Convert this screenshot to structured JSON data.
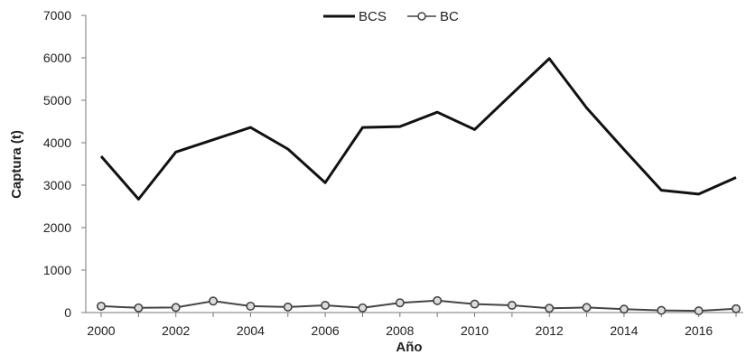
{
  "chart_data": {
    "type": "line",
    "title": "",
    "xlabel": "Año",
    "ylabel": "Captura (t)",
    "x": [
      2000,
      2001,
      2002,
      2003,
      2004,
      2005,
      2006,
      2007,
      2008,
      2009,
      2010,
      2011,
      2012,
      2013,
      2014,
      2015,
      2016,
      2017
    ],
    "x_tick_labels": [
      "2000",
      "2002",
      "2004",
      "2006",
      "2008",
      "2010",
      "2012",
      "2014",
      "2016"
    ],
    "y_tick_labels": [
      "0",
      "1000",
      "2000",
      "3000",
      "4000",
      "5000",
      "6000",
      "7000"
    ],
    "ylim": [
      0,
      7000
    ],
    "xlim": [
      2000,
      2017
    ],
    "grid": false,
    "legend_position": "top-center",
    "series": [
      {
        "name": "BCS",
        "color": "#111111",
        "marker": "none",
        "values": [
          3680,
          2670,
          3780,
          4070,
          4360,
          3850,
          3060,
          4360,
          4380,
          4720,
          4310,
          5150,
          5980,
          4820,
          3840,
          2880,
          2790,
          3180
        ]
      },
      {
        "name": "BC",
        "color": "#444444",
        "marker": "circle",
        "values": [
          150,
          110,
          120,
          270,
          150,
          130,
          170,
          110,
          230,
          280,
          200,
          170,
          100,
          120,
          80,
          50,
          40,
          90
        ]
      }
    ]
  }
}
